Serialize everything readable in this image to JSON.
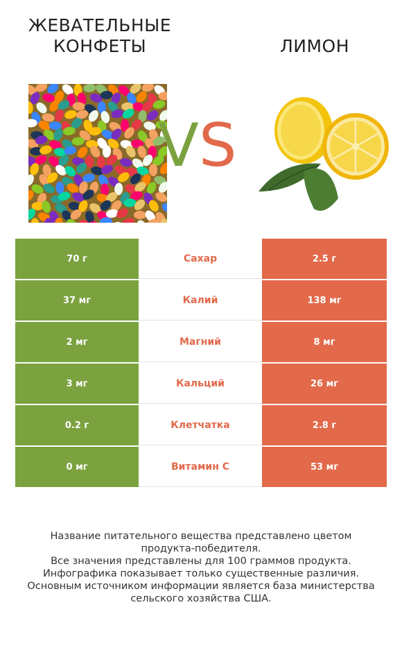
{
  "header": {
    "left_title_lines": [
      "ЖЕВАТЕЛЬНЫЕ",
      "КОНФЕТЫ"
    ],
    "right_title": "ЛИМОН",
    "vs_v": "V",
    "vs_s": "S"
  },
  "colors": {
    "left": "#7ba23f",
    "right": "#e2694a"
  },
  "images": {
    "left": "jelly-beans-photo",
    "right": "lemon-photo"
  },
  "rows": [
    {
      "left": "70 г",
      "label": "Сахар",
      "right": "2.5 г"
    },
    {
      "left": "37 мг",
      "label": "Калий",
      "right": "138 мг"
    },
    {
      "left": "2 мг",
      "label": "Магний",
      "right": "8 мг"
    },
    {
      "left": "3 мг",
      "label": "Кальций",
      "right": "26 мг"
    },
    {
      "left": "0.2 г",
      "label": "Клетчатка",
      "right": "2.8 г"
    },
    {
      "left": "0 мг",
      "label": "Витамин C",
      "right": "53 мг"
    }
  ],
  "footnote": [
    "Название питательного вещества представлено цветом",
    "продукта-победителя.",
    "Все значения представлены для 100 граммов продукта.",
    "Инфографика показывает только существенные различия.",
    "Основным источником информации является база министерства",
    "сельского хозяйства США."
  ]
}
